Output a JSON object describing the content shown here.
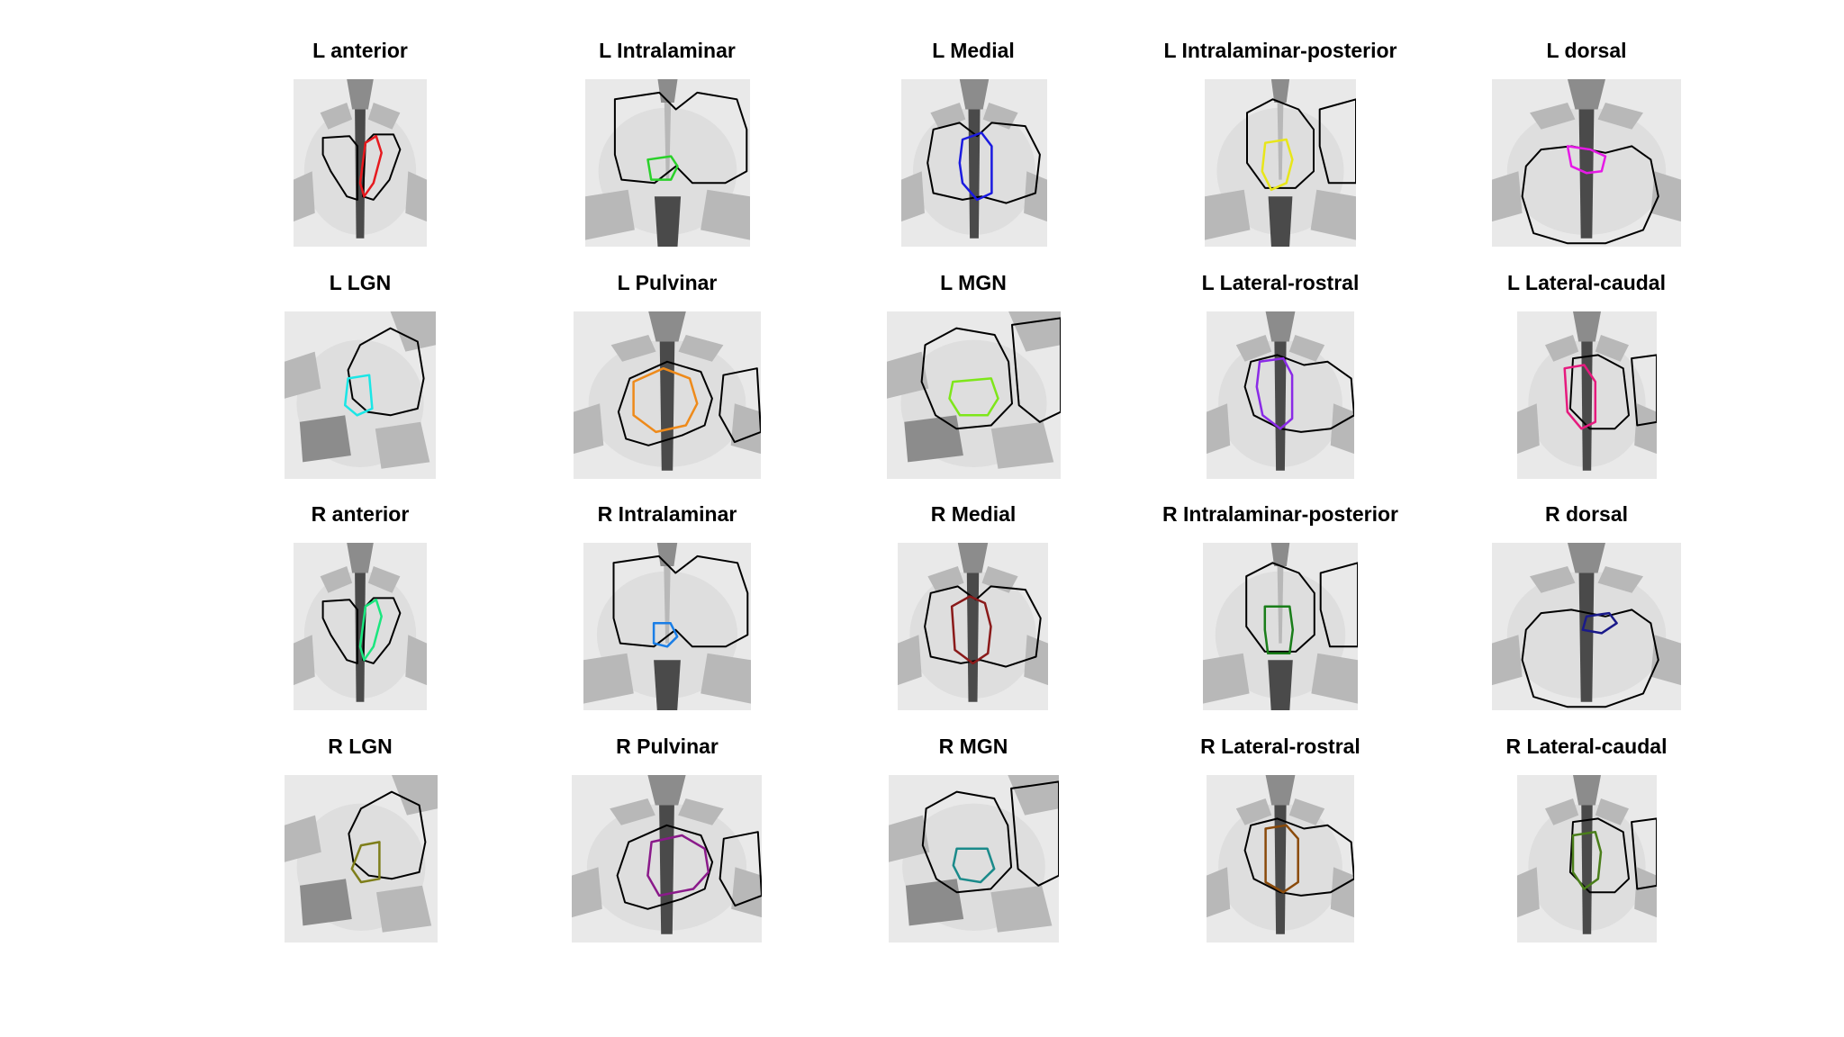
{
  "figure": {
    "panels": [
      {
        "title": "L anterior",
        "outline_color": "#e6191e",
        "view": "coronal-anterior"
      },
      {
        "title": "L Intralaminar",
        "outline_color": "#2ad12a",
        "view": "axial-wide"
      },
      {
        "title": "L Medial",
        "outline_color": "#1a1ae0",
        "view": "coronal-mid"
      },
      {
        "title": "L Intralaminar-posterior",
        "outline_color": "#e8e61a",
        "view": "axial-posterior"
      },
      {
        "title": "L dorsal",
        "outline_color": "#e61ae6",
        "view": "coronal-dorsal"
      },
      {
        "title": "L LGN",
        "outline_color": "#1ae6e6",
        "view": "sagittal-lgn"
      },
      {
        "title": "L Pulvinar",
        "outline_color": "#ee8a1a",
        "view": "coronal-pulvinar"
      },
      {
        "title": "L MGN",
        "outline_color": "#7ee61a",
        "view": "sagittal-mgn"
      },
      {
        "title": "L Lateral-rostral",
        "outline_color": "#8a2ae6",
        "view": "coronal-lateral"
      },
      {
        "title": "L Lateral-caudal",
        "outline_color": "#e61a7e",
        "view": "coronal-caudal"
      },
      {
        "title": "R anterior",
        "outline_color": "#1ae67e",
        "view": "coronal-anterior"
      },
      {
        "title": "R Intralaminar",
        "outline_color": "#1a7ee6",
        "view": "axial-wide"
      },
      {
        "title": "R Medial",
        "outline_color": "#8a1a1a",
        "view": "coronal-mid"
      },
      {
        "title": "R Intralaminar-posterior",
        "outline_color": "#1a7e1a",
        "view": "axial-posterior"
      },
      {
        "title": "R dorsal",
        "outline_color": "#1a1a8a",
        "view": "coronal-dorsal"
      },
      {
        "title": "R LGN",
        "outline_color": "#7e7e1a",
        "view": "sagittal-lgn"
      },
      {
        "title": "R Pulvinar",
        "outline_color": "#8a1a8a",
        "view": "coronal-pulvinar"
      },
      {
        "title": "R MGN",
        "outline_color": "#1a8a8a",
        "view": "sagittal-mgn"
      },
      {
        "title": "R Lateral-rostral",
        "outline_color": "#8a4a0a",
        "view": "coronal-lateral"
      },
      {
        "title": "R Lateral-caudal",
        "outline_color": "#4a7e1a",
        "view": "coronal-caudal"
      }
    ]
  }
}
